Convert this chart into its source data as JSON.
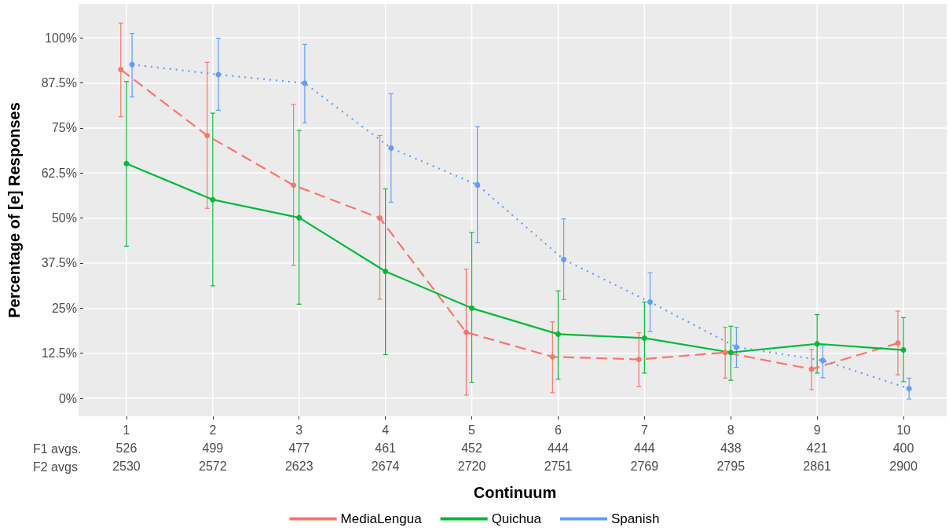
{
  "chart_data": {
    "type": "line",
    "xlabel": "Continuum",
    "ylabel": "Percentage of [e] Responses",
    "annotations": [
      "F1 avgs.",
      "F2 avgs"
    ],
    "categories": [
      "1\n526\n2530",
      "2\n499\n2572",
      "3\n477\n2623",
      "4\n461\n2674",
      "5\n452\n2720",
      "6\n444\n2751",
      "7\n444\n2769",
      "8\n438\n2795",
      "9\n421\n2861",
      "10\n400\n2900"
    ],
    "ylim": [
      -5,
      109.4
    ],
    "yticks": [
      {
        "value": 0,
        "label": "0%"
      },
      {
        "value": 12.5,
        "label": "12.5%"
      },
      {
        "value": 25,
        "label": "25%"
      },
      {
        "value": 37.5,
        "label": "37.5%"
      },
      {
        "value": 50,
        "label": "50%"
      },
      {
        "value": 62.5,
        "label": "62.5%"
      },
      {
        "value": 75,
        "label": "75%"
      },
      {
        "value": 87.5,
        "label": "87.5%"
      },
      {
        "value": 100,
        "label": "100%"
      }
    ],
    "grid": true,
    "legend": "bottom",
    "marker": "circle",
    "series": [
      {
        "name": "MediaLengua",
        "color": "#f8766d",
        "line_style": "dashed",
        "values": [
          91.2,
          72.9,
          59.1,
          50.0,
          18.3,
          11.5,
          10.8,
          12.7,
          8.1,
          15.3
        ],
        "errors": [
          [
            78.1,
            104.1
          ],
          [
            52.7,
            93.2
          ],
          [
            36.9,
            81.5
          ],
          [
            27.5,
            72.9
          ],
          [
            0.9,
            35.8
          ],
          [
            1.6,
            21.2
          ],
          [
            3.2,
            18.2
          ],
          [
            5.6,
            19.7
          ],
          [
            2.4,
            13.6
          ],
          [
            6.5,
            24.2
          ]
        ]
      },
      {
        "name": "Quichua",
        "color": "#00ba38",
        "line_style": "solid",
        "values": [
          65.1,
          55.1,
          50.1,
          35.2,
          25.0,
          17.8,
          16.7,
          12.7,
          15.1,
          13.4
        ],
        "errors": [
          [
            42.2,
            87.9
          ],
          [
            31.2,
            79.1
          ],
          [
            26.1,
            74.3
          ],
          [
            12.1,
            58.1
          ],
          [
            4.4,
            46.0
          ],
          [
            5.3,
            29.8
          ],
          [
            7.0,
            26.7
          ],
          [
            5.0,
            20.0
          ],
          [
            7.0,
            23.2
          ],
          [
            4.6,
            22.4
          ]
        ]
      },
      {
        "name": "Spanish",
        "color": "#619cff",
        "line_style": "dotted",
        "values": [
          92.6,
          89.8,
          87.4,
          69.4,
          59.2,
          38.5,
          26.7,
          14.2,
          10.5,
          2.7
        ],
        "errors": [
          [
            83.6,
            101.2
          ],
          [
            79.9,
            99.9
          ],
          [
            76.4,
            98.2
          ],
          [
            54.4,
            84.5
          ],
          [
            43.2,
            75.3
          ],
          [
            27.4,
            49.8
          ],
          [
            18.5,
            34.8
          ],
          [
            8.6,
            19.7
          ],
          [
            5.7,
            14.6
          ],
          [
            -0.2,
            5.6
          ]
        ]
      }
    ]
  }
}
